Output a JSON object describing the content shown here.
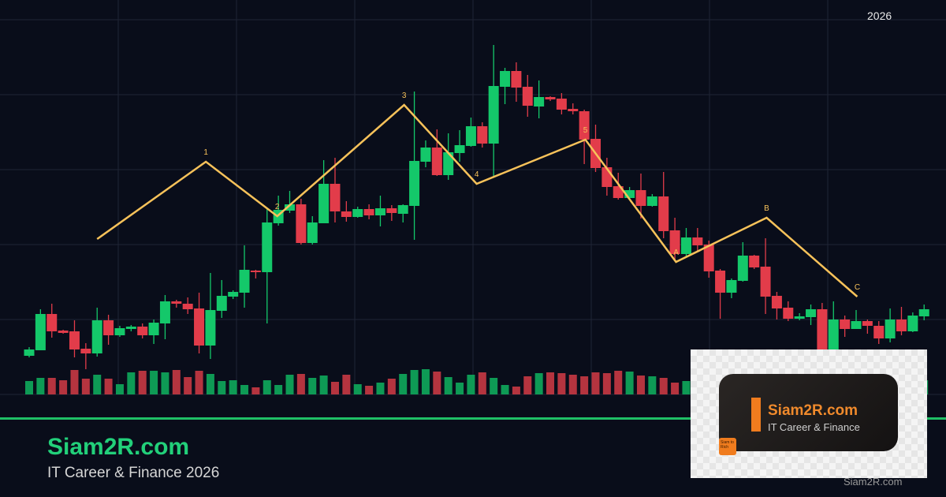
{
  "header": {
    "year": "2026"
  },
  "footer": {
    "brand": "Siam2R.com",
    "tagline": "IT Career & Finance 2026"
  },
  "logo": {
    "name": "Siam2R.com",
    "subtitle": "IT Career & Finance",
    "badge": "Siam to Rich",
    "watermark": "Siam2R.com"
  },
  "colors": {
    "background": "#090d1a",
    "up": "#14c86a",
    "down": "#e23c4a",
    "volume_up": "#0e9a55",
    "volume_down": "#b5343f",
    "wave": "#f7c25a",
    "accent_line": "#1fbf66",
    "grid": "#1f2535"
  },
  "chart_data": {
    "type": "candlestick",
    "title": "",
    "xlabel": "",
    "ylabel": "",
    "grid": true,
    "ylim": [
      0,
      500
    ],
    "ohlc": [
      [
        49,
        60,
        47,
        57
      ],
      [
        56,
        108,
        56,
        102
      ],
      [
        102,
        115,
        72,
        80
      ],
      [
        81,
        82,
        77,
        78
      ],
      [
        80,
        94,
        47,
        57
      ],
      [
        58,
        65,
        32,
        52
      ],
      [
        52,
        110,
        48,
        94
      ],
      [
        94,
        101,
        63,
        75
      ],
      [
        75,
        87,
        73,
        84
      ],
      [
        83,
        88,
        80,
        86
      ],
      [
        86,
        90,
        71,
        75
      ],
      [
        75,
        95,
        64,
        91
      ],
      [
        90,
        126,
        70,
        118
      ],
      [
        118,
        120,
        110,
        115
      ],
      [
        115,
        123,
        102,
        108
      ],
      [
        109,
        129,
        52,
        62
      ],
      [
        62,
        154,
        45,
        107
      ],
      [
        106,
        145,
        97,
        125
      ],
      [
        124,
        132,
        121,
        130
      ],
      [
        129,
        189,
        110,
        158
      ],
      [
        157,
        158,
        147,
        155
      ],
      [
        155,
        235,
        90,
        218
      ],
      [
        217,
        252,
        214,
        234
      ],
      [
        233,
        258,
        230,
        241
      ],
      [
        241,
        248,
        190,
        192
      ],
      [
        192,
        226,
        190,
        218
      ],
      [
        217,
        297,
        217,
        267
      ],
      [
        267,
        300,
        218,
        232
      ],
      [
        232,
        245,
        219,
        225
      ],
      [
        225,
        238,
        224,
        235
      ],
      [
        235,
        241,
        222,
        227
      ],
      [
        227,
        252,
        213,
        236
      ],
      [
        236,
        240,
        220,
        230
      ],
      [
        229,
        241,
        218,
        240
      ],
      [
        239,
        384,
        196,
        296
      ],
      [
        295,
        322,
        288,
        313
      ],
      [
        313,
        336,
        277,
        278
      ],
      [
        278,
        331,
        272,
        307
      ],
      [
        306,
        335,
        295,
        316
      ],
      [
        315,
        351,
        314,
        340
      ],
      [
        340,
        345,
        313,
        318
      ],
      [
        318,
        443,
        277,
        391
      ],
      [
        390,
        414,
        368,
        410
      ],
      [
        410,
        421,
        371,
        389
      ],
      [
        390,
        405,
        352,
        366
      ],
      [
        365,
        398,
        350,
        377
      ],
      [
        377,
        378,
        372,
        374
      ],
      [
        375,
        382,
        355,
        361
      ],
      [
        362,
        369,
        355,
        359
      ],
      [
        359,
        361,
        292,
        323
      ],
      [
        324,
        342,
        282,
        287
      ],
      [
        288,
        300,
        252,
        263
      ],
      [
        264,
        281,
        247,
        249
      ],
      [
        249,
        263,
        248,
        259
      ],
      [
        259,
        280,
        223,
        239
      ],
      [
        239,
        254,
        238,
        251
      ],
      [
        251,
        282,
        198,
        207
      ],
      [
        208,
        224,
        170,
        178
      ],
      [
        178,
        211,
        174,
        199
      ],
      [
        199,
        211,
        180,
        189
      ],
      [
        190,
        195,
        148,
        156
      ],
      [
        157,
        159,
        96,
        129
      ],
      [
        129,
        147,
        122,
        145
      ],
      [
        144,
        193,
        143,
        176
      ],
      [
        176,
        177,
        159,
        161
      ],
      [
        162,
        198,
        102,
        124
      ],
      [
        125,
        130,
        95,
        109
      ],
      [
        110,
        118,
        93,
        96
      ],
      [
        96,
        103,
        94,
        99
      ],
      [
        98,
        114,
        88,
        108
      ],
      [
        108,
        116,
        50,
        53
      ],
      [
        53,
        118,
        50,
        95
      ],
      [
        95,
        100,
        73,
        83
      ],
      [
        83,
        107,
        83,
        93
      ],
      [
        93,
        95,
        77,
        87
      ],
      [
        87,
        93,
        64,
        71
      ],
      [
        71,
        109,
        66,
        95
      ],
      [
        95,
        111,
        75,
        80
      ],
      [
        80,
        104,
        79,
        100
      ],
      [
        99,
        114,
        94,
        108
      ]
    ],
    "volume": [
      17,
      21,
      21,
      18,
      31,
      20,
      25,
      20,
      13,
      28,
      30,
      30,
      28,
      31,
      22,
      30,
      26,
      17,
      18,
      12,
      9,
      18,
      12,
      25,
      26,
      21,
      24,
      16,
      25,
      13,
      11,
      15,
      20,
      26,
      31,
      32,
      29,
      22,
      15,
      25,
      28,
      21,
      12,
      10,
      23,
      27,
      28,
      27,
      25,
      23,
      28,
      27,
      30,
      29,
      24,
      23,
      21,
      15,
      17,
      19,
      16,
      12,
      14,
      22,
      26,
      20,
      18,
      15,
      12,
      24,
      21,
      17,
      14,
      18,
      22,
      27,
      24,
      16,
      20,
      18
    ],
    "wave": [
      {
        "label": "",
        "index": 6,
        "price": 197
      },
      {
        "label": "1",
        "index": 15.6,
        "price": 295
      },
      {
        "label": "2",
        "index": 21.9,
        "price": 226
      },
      {
        "label": "3",
        "index": 33.1,
        "price": 367
      },
      {
        "label": "4",
        "index": 39.5,
        "price": 267
      },
      {
        "label": "5",
        "index": 49.1,
        "price": 323
      },
      {
        "label": "A",
        "index": 57.1,
        "price": 168
      },
      {
        "label": "B",
        "index": 65.1,
        "price": 224
      },
      {
        "label": "C",
        "index": 73.1,
        "price": 124
      }
    ]
  }
}
